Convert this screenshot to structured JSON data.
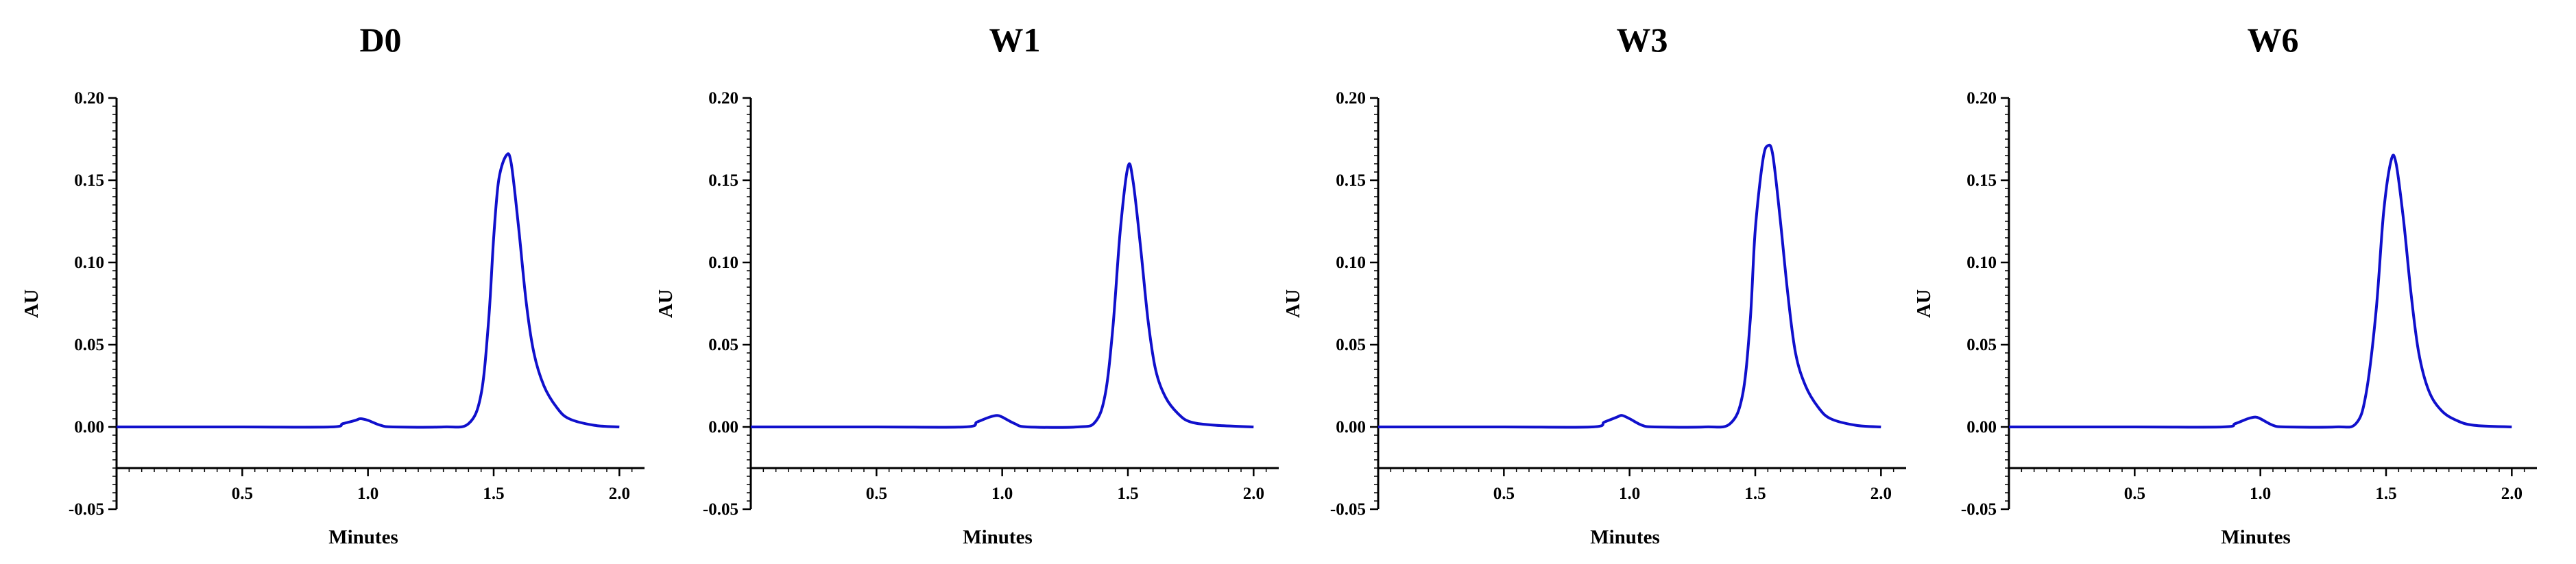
{
  "figure": {
    "line_color": "#1010cc"
  },
  "chart_data": [
    {
      "type": "line",
      "title": "D0",
      "xlabel": "Minutes",
      "ylabel": "AU",
      "xlim": [
        0,
        2.1
      ],
      "ylim": [
        -0.05,
        0.2
      ],
      "x_ticks": [
        "0.5",
        "1.0",
        "1.5",
        "2.0"
      ],
      "y_ticks": [
        "-0.05",
        "0.00",
        "0.05",
        "0.10",
        "0.15",
        "0.20"
      ],
      "grid": false,
      "series": [
        {
          "x": [
            0.0,
            0.5,
            0.85,
            0.9,
            0.95,
            0.97,
            1.0,
            1.05,
            1.1,
            1.3,
            1.4,
            1.45,
            1.48,
            1.5,
            1.52,
            1.55,
            1.57,
            1.6,
            1.63,
            1.66,
            1.7,
            1.75,
            1.8,
            1.9,
            2.0
          ],
          "y": [
            0.0,
            0.0,
            0.0,
            0.002,
            0.004,
            0.005,
            0.004,
            0.001,
            0.0,
            0.0,
            0.002,
            0.02,
            0.065,
            0.115,
            0.15,
            0.165,
            0.16,
            0.12,
            0.075,
            0.045,
            0.025,
            0.012,
            0.005,
            0.001,
            0.0
          ]
        }
      ]
    },
    {
      "type": "line",
      "title": "W1",
      "xlabel": "Minutes",
      "ylabel": "AU",
      "xlim": [
        0,
        2.1
      ],
      "ylim": [
        -0.05,
        0.2
      ],
      "x_ticks": [
        "0.5",
        "1.0",
        "1.5",
        "2.0"
      ],
      "y_ticks": [
        "-0.05",
        "0.00",
        "0.05",
        "0.10",
        "0.15",
        "0.20"
      ],
      "grid": false,
      "series": [
        {
          "x": [
            0.0,
            0.5,
            0.85,
            0.9,
            0.95,
            0.98,
            1.0,
            1.05,
            1.1,
            1.3,
            1.37,
            1.41,
            1.44,
            1.47,
            1.5,
            1.52,
            1.55,
            1.58,
            1.61,
            1.65,
            1.7,
            1.75,
            1.85,
            2.0
          ],
          "y": [
            0.0,
            0.0,
            0.0,
            0.003,
            0.006,
            0.007,
            0.006,
            0.002,
            0.0,
            0.0,
            0.003,
            0.02,
            0.06,
            0.12,
            0.158,
            0.15,
            0.11,
            0.065,
            0.035,
            0.018,
            0.008,
            0.003,
            0.001,
            0.0
          ]
        }
      ]
    },
    {
      "type": "line",
      "title": "W3",
      "xlabel": "Minutes",
      "ylabel": "AU",
      "xlim": [
        0,
        2.1
      ],
      "ylim": [
        -0.05,
        0.2
      ],
      "x_ticks": [
        "0.5",
        "1.0",
        "1.5",
        "2.0"
      ],
      "y_ticks": [
        "-0.05",
        "0.00",
        "0.05",
        "0.10",
        "0.15",
        "0.20"
      ],
      "grid": false,
      "series": [
        {
          "x": [
            0.0,
            0.5,
            0.85,
            0.9,
            0.95,
            0.97,
            1.0,
            1.05,
            1.1,
            1.3,
            1.4,
            1.45,
            1.48,
            1.5,
            1.53,
            1.55,
            1.57,
            1.6,
            1.63,
            1.66,
            1.7,
            1.75,
            1.8,
            1.9,
            2.0
          ],
          "y": [
            0.0,
            0.0,
            0.0,
            0.003,
            0.006,
            0.007,
            0.005,
            0.001,
            0.0,
            0.0,
            0.002,
            0.02,
            0.065,
            0.12,
            0.162,
            0.171,
            0.165,
            0.125,
            0.08,
            0.045,
            0.025,
            0.012,
            0.005,
            0.001,
            0.0
          ]
        }
      ]
    },
    {
      "type": "line",
      "title": "W6",
      "xlabel": "Minutes",
      "ylabel": "AU",
      "xlim": [
        0,
        2.1
      ],
      "ylim": [
        -0.05,
        0.2
      ],
      "x_ticks": [
        "0.5",
        "1.0",
        "1.5",
        "2.0"
      ],
      "y_ticks": [
        "-0.05",
        "0.00",
        "0.05",
        "0.10",
        "0.15",
        "0.20"
      ],
      "grid": false,
      "series": [
        {
          "x": [
            0.0,
            0.5,
            0.85,
            0.9,
            0.95,
            0.98,
            1.0,
            1.05,
            1.1,
            1.3,
            1.38,
            1.42,
            1.46,
            1.49,
            1.52,
            1.54,
            1.57,
            1.6,
            1.63,
            1.67,
            1.72,
            1.78,
            1.85,
            2.0
          ],
          "y": [
            0.0,
            0.0,
            0.0,
            0.002,
            0.005,
            0.006,
            0.005,
            0.001,
            0.0,
            0.0,
            0.002,
            0.02,
            0.07,
            0.13,
            0.162,
            0.16,
            0.125,
            0.08,
            0.045,
            0.022,
            0.01,
            0.004,
            0.001,
            0.0
          ]
        }
      ]
    }
  ]
}
